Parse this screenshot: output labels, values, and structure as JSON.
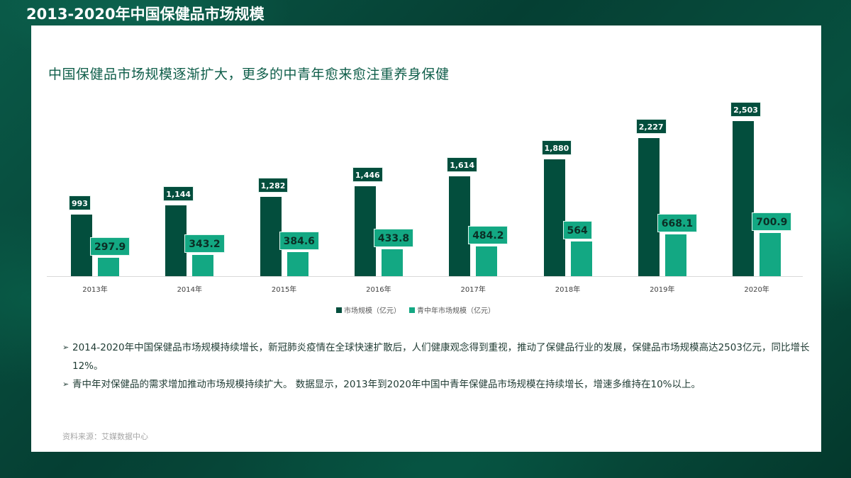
{
  "header": {
    "title": "2013-2020年中国保健品市场规模"
  },
  "card": {
    "subtitle": "中国保健品市场规模逐渐扩大，更多的中青年愈来愈注重养身保健",
    "legend": [
      {
        "label": "市场规模（亿元）",
        "color": "#034e3d"
      },
      {
        "label": "青中年市场规模（亿元）",
        "color": "#13a883"
      }
    ],
    "bullets": [
      {
        "marker": "➢",
        "text": "2014-2020年中国保健品市场规模持续增长，新冠肺炎疫情在全球快速扩散后，人们健康观念得到重视，推动了保健品行业的发展，保健品市场规模高达2503亿元，同比增长12%。"
      },
      {
        "marker": "➢",
        "text": "青中年对保健品的需求增加推动市场规模持续扩大。 数据显示，2013年到2020年中国中青年保健品市场规模在持续增长，增速多维持在10%以上。"
      }
    ],
    "source": "资料来源：艾媒数据中心"
  },
  "colors": {
    "dark": "#034e3d",
    "light": "#13a883",
    "background": "#053f33"
  },
  "chart_data": {
    "type": "bar",
    "title": "中国保健品市场规模逐渐扩大，更多的中青年愈来愈注重养身保健",
    "categories": [
      "2013年",
      "2014年",
      "2015年",
      "2016年",
      "2017年",
      "2018年",
      "2019年",
      "2020年"
    ],
    "series": [
      {
        "name": "市场规模（亿元）",
        "values": [
          993,
          1144,
          1282,
          1446,
          1614,
          1880,
          2227,
          2503
        ],
        "labels": [
          "993",
          "1,144",
          "1,282",
          "1,446",
          "1,614",
          "1,880",
          "2,227",
          "2,503"
        ]
      },
      {
        "name": "青中年市场规模（亿元）",
        "values": [
          297.9,
          343.2,
          384.6,
          433.8,
          484.2,
          564,
          668.1,
          700.9
        ],
        "labels": [
          "297.9",
          "343.2",
          "384.6",
          "433.8",
          "484.2",
          "564",
          "668.1",
          "700.9"
        ]
      }
    ],
    "xlabel": "",
    "ylabel": "",
    "ylim": [
      0,
      2600
    ],
    "grid": false,
    "legend_position": "bottom",
    "data_labels": true
  }
}
